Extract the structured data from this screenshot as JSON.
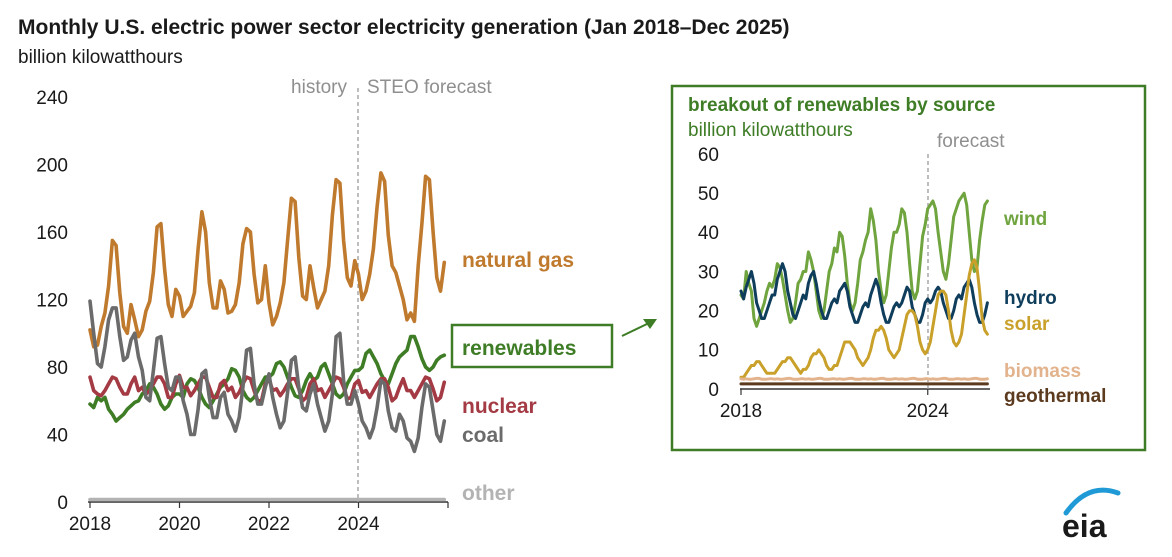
{
  "chart_data": [
    {
      "type": "line",
      "title": "Monthly U.S. electric power sector electricity generation (Jan 2018–Dec 2025)",
      "ylabel": "billion kilowatthours",
      "xlabel": "",
      "ylim": [
        0,
        240
      ],
      "yticks": [
        0,
        40,
        80,
        120,
        160,
        200,
        240
      ],
      "xticks": [
        2018,
        2020,
        2022,
        2024
      ],
      "xlim": [
        2018,
        2026
      ],
      "history_label": "history",
      "forecast_label": "STEO forecast",
      "forecast_start": 2024,
      "series": [
        {
          "name": "natural gas",
          "color": "#c07a2e",
          "start": 2018,
          "step": 0.0833333,
          "values": [
            102,
            92,
            93,
            104,
            112,
            128,
            155,
            152,
            124,
            104,
            100,
            117,
            108,
            98,
            102,
            113,
            119,
            136,
            163,
            165,
            138,
            117,
            110,
            126,
            122,
            110,
            113,
            116,
            124,
            150,
            172,
            160,
            130,
            115,
            115,
            131,
            126,
            112,
            113,
            117,
            130,
            153,
            162,
            160,
            135,
            118,
            120,
            140,
            118,
            105,
            110,
            118,
            130,
            155,
            180,
            178,
            145,
            122,
            120,
            140,
            127,
            115,
            120,
            125,
            140,
            170,
            191,
            189,
            155,
            133,
            128,
            143,
            135,
            120,
            125,
            135,
            150,
            175,
            195,
            190,
            158,
            140,
            136,
            128,
            120,
            108,
            112,
            107,
            140,
            165,
            193,
            191,
            160,
            133,
            125,
            142
          ]
        },
        {
          "name": "renewables",
          "color": "#3e7d26",
          "start": 2018,
          "step": 0.0833333,
          "values": [
            58,
            56,
            62,
            60,
            62,
            55,
            52,
            48,
            50,
            52,
            55,
            57,
            59,
            60,
            64,
            66,
            70,
            68,
            64,
            58,
            55,
            57,
            62,
            64,
            64,
            62,
            70,
            73,
            72,
            68,
            62,
            58,
            56,
            60,
            64,
            68,
            70,
            73,
            79,
            78,
            74,
            66,
            62,
            60,
            62,
            66,
            70,
            74,
            74,
            76,
            82,
            83,
            80,
            74,
            68,
            63,
            62,
            66,
            72,
            76,
            72,
            74,
            80,
            82,
            76,
            70,
            64,
            62,
            64,
            70,
            74,
            78,
            78,
            80,
            88,
            90,
            86,
            82,
            76,
            72,
            70,
            76,
            82,
            86,
            88,
            90,
            98,
            98,
            92,
            85,
            80,
            78,
            80,
            84,
            86,
            87
          ]
        },
        {
          "name": "nuclear",
          "color": "#a33a44",
          "start": 2018,
          "step": 0.0833333,
          "values": [
            74,
            66,
            64,
            63,
            66,
            70,
            74,
            73,
            68,
            64,
            64,
            70,
            74,
            66,
            68,
            64,
            66,
            70,
            74,
            74,
            70,
            62,
            62,
            70,
            75,
            68,
            68,
            63,
            66,
            70,
            74,
            74,
            68,
            62,
            62,
            70,
            72,
            66,
            68,
            62,
            65,
            70,
            74,
            73,
            66,
            60,
            60,
            70,
            73,
            66,
            67,
            63,
            66,
            70,
            73,
            73,
            67,
            60,
            62,
            70,
            73,
            66,
            67,
            62,
            66,
            70,
            74,
            73,
            68,
            61,
            62,
            70,
            72,
            65,
            66,
            62,
            66,
            70,
            73,
            73,
            68,
            60,
            62,
            68,
            73,
            66,
            66,
            62,
            66,
            70,
            74,
            73,
            67,
            60,
            62,
            71
          ]
        },
        {
          "name": "coal",
          "color": "#6b6b6b",
          "start": 2018,
          "step": 0.0833333,
          "values": [
            119,
            100,
            82,
            80,
            92,
            108,
            115,
            115,
            98,
            84,
            86,
            96,
            100,
            86,
            78,
            62,
            60,
            78,
            97,
            98,
            82,
            68,
            66,
            74,
            74,
            60,
            52,
            40,
            40,
            55,
            76,
            78,
            62,
            50,
            50,
            62,
            65,
            52,
            48,
            42,
            50,
            68,
            90,
            91,
            70,
            58,
            58,
            68,
            76,
            62,
            52,
            44,
            48,
            65,
            84,
            86,
            68,
            56,
            54,
            64,
            70,
            58,
            50,
            42,
            48,
            64,
            98,
            100,
            72,
            58,
            58,
            66,
            58,
            48,
            44,
            38,
            44,
            56,
            72,
            70,
            54,
            44,
            42,
            52,
            48,
            38,
            36,
            30,
            38,
            56,
            70,
            68,
            54,
            40,
            36,
            48
          ]
        },
        {
          "name": "other",
          "color": "#b3b3b3",
          "start": 2018,
          "step": 0.0833333,
          "values": [
            1.5,
            1.5,
            1.5,
            1.5,
            1.5,
            1.5,
            1.5,
            1.5,
            1.5,
            1.5,
            1.5,
            1.5,
            1.5,
            1.5,
            1.5,
            1.5,
            1.5,
            1.5,
            1.5,
            1.5,
            1.5,
            1.5,
            1.5,
            1.5,
            1.5,
            1.5,
            1.5,
            1.5,
            1.5,
            1.5,
            1.5,
            1.5,
            1.5,
            1.5,
            1.5,
            1.5,
            1.5,
            1.5,
            1.5,
            1.5,
            1.5,
            1.5,
            1.5,
            1.5,
            1.5,
            1.5,
            1.5,
            1.5,
            1.5,
            1.5,
            1.5,
            1.5,
            1.5,
            1.5,
            1.5,
            1.5,
            1.5,
            1.5,
            1.5,
            1.5,
            1.5,
            1.5,
            1.5,
            1.5,
            1.5,
            1.5,
            1.5,
            1.5,
            1.5,
            1.5,
            1.5,
            1.5,
            1.5,
            1.5,
            1.5,
            1.5,
            1.5,
            1.5,
            1.5,
            1.5,
            1.5,
            1.5,
            1.5,
            1.5,
            1.5,
            1.5,
            1.5,
            1.5,
            1.5,
            1.5,
            1.5,
            1.5,
            1.5,
            1.5,
            1.5,
            1.5
          ]
        }
      ]
    },
    {
      "type": "line",
      "title": "breakout of renewables by source",
      "ylabel": "billion kilowatthours",
      "xlabel": "",
      "ylim": [
        0,
        60
      ],
      "yticks": [
        0,
        10,
        20,
        30,
        40,
        50,
        60
      ],
      "xticks": [
        2018,
        2024
      ],
      "xlim": [
        2018,
        2026
      ],
      "forecast_label": "forecast",
      "forecast_start": 2024,
      "series": [
        {
          "name": "wind",
          "color": "#6fa43e",
          "start": 2018,
          "step": 0.0833333,
          "values": [
            24,
            23,
            30,
            27,
            25,
            18,
            16,
            18,
            20,
            22,
            25,
            27,
            26,
            28,
            32,
            31,
            28,
            24,
            20,
            17,
            18,
            22,
            27,
            28,
            30,
            30,
            35,
            33,
            30,
            25,
            20,
            18,
            20,
            25,
            30,
            32,
            36,
            35,
            40,
            39,
            34,
            27,
            22,
            20,
            22,
            27,
            33,
            35,
            38,
            40,
            46,
            43,
            38,
            30,
            25,
            22,
            24,
            30,
            36,
            40,
            40,
            42,
            46,
            45,
            40,
            32,
            25,
            23,
            25,
            32,
            39,
            42,
            46,
            47,
            48,
            46,
            40,
            35,
            30,
            28,
            32,
            38,
            44,
            46,
            48,
            49,
            50,
            47,
            40,
            33,
            30,
            31,
            38,
            43,
            47,
            48
          ]
        },
        {
          "name": "hydro",
          "color": "#0f3d5c",
          "start": 2018,
          "step": 0.0833333,
          "values": [
            25,
            23,
            26,
            28,
            30,
            27,
            22,
            20,
            18,
            18,
            20,
            22,
            24,
            24,
            28,
            30,
            32,
            30,
            25,
            22,
            19,
            18,
            20,
            22,
            24,
            23,
            27,
            29,
            30,
            27,
            23,
            20,
            18,
            18,
            20,
            22,
            23,
            22,
            25,
            26,
            27,
            25,
            21,
            19,
            17,
            17,
            19,
            21,
            22,
            21,
            24,
            26,
            28,
            26,
            22,
            19,
            17,
            17,
            19,
            21,
            22,
            21,
            22,
            24,
            26,
            25,
            21,
            19,
            17,
            17,
            19,
            22,
            23,
            22,
            23,
            25,
            26,
            25,
            22,
            20,
            18,
            18,
            20,
            23,
            24,
            23,
            26,
            27,
            28,
            26,
            22,
            19,
            17,
            17,
            19,
            22
          ]
        },
        {
          "name": "solar",
          "color": "#c9a12a",
          "start": 2018,
          "step": 0.0833333,
          "values": [
            3,
            3,
            4,
            5,
            6,
            6,
            7,
            7,
            6,
            5,
            4,
            4,
            4,
            4,
            5,
            6,
            7,
            7,
            8,
            8,
            7,
            6,
            5,
            4,
            5,
            5,
            6,
            8,
            9,
            9,
            10,
            9,
            8,
            6,
            5,
            5,
            6,
            6,
            8,
            10,
            12,
            12,
            12,
            11,
            10,
            8,
            7,
            6,
            7,
            8,
            10,
            13,
            15,
            15,
            16,
            15,
            13,
            10,
            9,
            8,
            9,
            10,
            13,
            16,
            19,
            20,
            20,
            19,
            16,
            12,
            10,
            9,
            10,
            12,
            16,
            20,
            24,
            25,
            25,
            24,
            20,
            15,
            12,
            11,
            12,
            14,
            19,
            24,
            29,
            32,
            33,
            31,
            25,
            18,
            15,
            14
          ]
        },
        {
          "name": "biomass",
          "color": "#e2b38c",
          "start": 2018,
          "step": 0.0833333,
          "values": [
            2.6,
            2.5,
            2.6,
            2.5,
            2.5,
            2.6,
            2.7,
            2.7,
            2.5,
            2.5,
            2.5,
            2.6,
            2.6,
            2.5,
            2.6,
            2.5,
            2.5,
            2.6,
            2.7,
            2.7,
            2.5,
            2.5,
            2.5,
            2.6,
            2.6,
            2.5,
            2.6,
            2.5,
            2.5,
            2.6,
            2.7,
            2.7,
            2.5,
            2.5,
            2.5,
            2.6,
            2.6,
            2.5,
            2.6,
            2.5,
            2.5,
            2.6,
            2.7,
            2.7,
            2.5,
            2.5,
            2.5,
            2.6,
            2.6,
            2.5,
            2.6,
            2.5,
            2.5,
            2.6,
            2.7,
            2.7,
            2.5,
            2.5,
            2.5,
            2.6,
            2.6,
            2.5,
            2.6,
            2.5,
            2.5,
            2.6,
            2.7,
            2.7,
            2.5,
            2.5,
            2.5,
            2.6,
            2.6,
            2.5,
            2.6,
            2.5,
            2.5,
            2.6,
            2.7,
            2.7,
            2.5,
            2.5,
            2.5,
            2.6,
            2.6,
            2.5,
            2.6,
            2.5,
            2.5,
            2.6,
            2.7,
            2.7,
            2.5,
            2.5,
            2.5,
            2.6
          ]
        },
        {
          "name": "geothermal",
          "color": "#5c3a1e",
          "start": 2018,
          "step": 0.0833333,
          "values": [
            1.3,
            1.3,
            1.3,
            1.3,
            1.3,
            1.3,
            1.3,
            1.3,
            1.3,
            1.3,
            1.3,
            1.3,
            1.3,
            1.3,
            1.3,
            1.3,
            1.3,
            1.3,
            1.3,
            1.3,
            1.3,
            1.3,
            1.3,
            1.3,
            1.3,
            1.3,
            1.3,
            1.3,
            1.3,
            1.3,
            1.3,
            1.3,
            1.3,
            1.3,
            1.3,
            1.3,
            1.3,
            1.3,
            1.3,
            1.3,
            1.3,
            1.3,
            1.3,
            1.3,
            1.3,
            1.3,
            1.3,
            1.3,
            1.3,
            1.3,
            1.3,
            1.3,
            1.3,
            1.3,
            1.3,
            1.3,
            1.3,
            1.3,
            1.3,
            1.3,
            1.3,
            1.3,
            1.3,
            1.3,
            1.3,
            1.3,
            1.3,
            1.3,
            1.3,
            1.3,
            1.3,
            1.3,
            1.3,
            1.3,
            1.3,
            1.3,
            1.3,
            1.3,
            1.3,
            1.3,
            1.3,
            1.3,
            1.3,
            1.3,
            1.3,
            1.3,
            1.3,
            1.3,
            1.3,
            1.3,
            1.3,
            1.3,
            1.3,
            1.3,
            1.3,
            1.3
          ]
        }
      ]
    }
  ],
  "logo_text": "eia",
  "colors": {
    "axis": "#333333",
    "tick": "#1a1a1a",
    "forecast_line": "#9a9a9a",
    "forecast_text": "#8f8f8f",
    "inset_border": "#3e7d26",
    "inset_title": "#3e7d26",
    "logo_arc": "#1f9ad6"
  }
}
